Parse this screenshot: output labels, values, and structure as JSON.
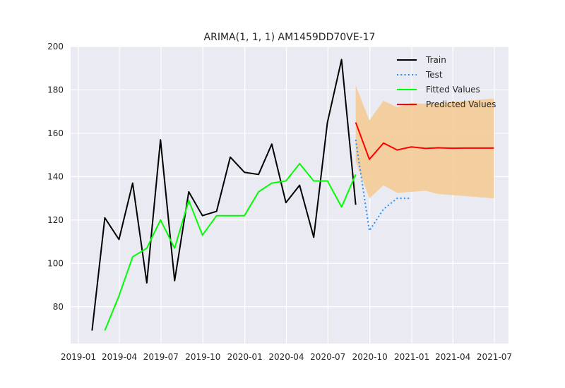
{
  "chart_data": {
    "type": "line",
    "title": "ARIMA(1, 1, 1) AM1459DD70VE-17",
    "xlabel": "",
    "ylabel": "",
    "x_axis_type": "date",
    "xlim": [
      "2018-12-15",
      "2021-08-01"
    ],
    "ylim": [
      63,
      200
    ],
    "grid": true,
    "legend_position": "top-right",
    "x_ticks": [
      {
        "date": "2019-01-01",
        "label": "2019-01"
      },
      {
        "date": "2019-04-01",
        "label": "2019-04"
      },
      {
        "date": "2019-07-01",
        "label": "2019-07"
      },
      {
        "date": "2019-10-01",
        "label": "2019-10"
      },
      {
        "date": "2020-01-01",
        "label": "2020-01"
      },
      {
        "date": "2020-04-01",
        "label": "2020-04"
      },
      {
        "date": "2020-07-01",
        "label": "2020-07"
      },
      {
        "date": "2020-10-01",
        "label": "2020-10"
      },
      {
        "date": "2021-01-01",
        "label": "2021-01"
      },
      {
        "date": "2021-04-01",
        "label": "2021-04"
      },
      {
        "date": "2021-07-01",
        "label": "2021-07"
      }
    ],
    "y_ticks": [
      80,
      100,
      120,
      140,
      160,
      180,
      200
    ],
    "series": [
      {
        "name": "Train",
        "color": "#000000",
        "style": "solid",
        "x": [
          "2019-01-31",
          "2019-02-28",
          "2019-03-31",
          "2019-04-30",
          "2019-05-31",
          "2019-06-30",
          "2019-07-31",
          "2019-08-31",
          "2019-09-30",
          "2019-10-31",
          "2019-11-30",
          "2019-12-31",
          "2020-01-31",
          "2020-02-29",
          "2020-03-31",
          "2020-04-30",
          "2020-05-31",
          "2020-06-30",
          "2020-07-31",
          "2020-08-31"
        ],
        "y": [
          69,
          121,
          111,
          137,
          91,
          157,
          92,
          133,
          122,
          124,
          149,
          142,
          141,
          155,
          128,
          136,
          112,
          165,
          194,
          127
        ]
      },
      {
        "name": "Test",
        "color": "#1e90ff",
        "style": "dotted",
        "x": [
          "2020-08-31",
          "2020-09-30",
          "2020-10-31",
          "2020-11-30",
          "2020-12-31"
        ],
        "y": [
          157,
          115,
          125,
          130,
          130
        ]
      },
      {
        "name": "Fitted Values",
        "color": "#00ff00",
        "style": "solid",
        "x": [
          "2019-02-28",
          "2019-03-31",
          "2019-04-30",
          "2019-05-31",
          "2019-06-30",
          "2019-07-31",
          "2019-08-31",
          "2019-09-30",
          "2019-10-31",
          "2019-11-30",
          "2019-12-31",
          "2020-01-31",
          "2020-02-29",
          "2020-03-31",
          "2020-04-30",
          "2020-05-31",
          "2020-06-30",
          "2020-07-31",
          "2020-08-31"
        ],
        "y": [
          69,
          85,
          103,
          107,
          120,
          107,
          129,
          113,
          122,
          122,
          122,
          133,
          137,
          138,
          146,
          138,
          138,
          126,
          141
        ]
      },
      {
        "name": "Predicted Values",
        "color": "#ff0000",
        "style": "solid",
        "x": [
          "2020-08-31",
          "2020-09-30",
          "2020-10-31",
          "2020-11-30",
          "2020-12-31",
          "2021-01-31",
          "2021-02-28",
          "2021-03-31",
          "2021-04-30",
          "2021-05-31",
          "2021-06-30"
        ],
        "y": [
          165,
          148,
          155.5,
          152.3,
          153.7,
          153.0,
          153.3,
          153.1,
          153.2,
          153.2,
          153.2
        ]
      }
    ],
    "confidence_band": {
      "color": "#f5c98f",
      "x": [
        "2020-08-31",
        "2020-09-30",
        "2020-10-31",
        "2020-11-30",
        "2020-12-31",
        "2021-01-31",
        "2021-02-28",
        "2021-03-31",
        "2021-04-30",
        "2021-05-31",
        "2021-06-30"
      ],
      "upper": [
        182,
        166,
        175,
        172,
        174,
        173.5,
        174,
        174.5,
        175,
        175.5,
        176
      ],
      "lower": [
        147,
        130,
        136,
        132.5,
        133,
        133.5,
        132,
        131.5,
        131,
        130.5,
        130
      ]
    }
  }
}
